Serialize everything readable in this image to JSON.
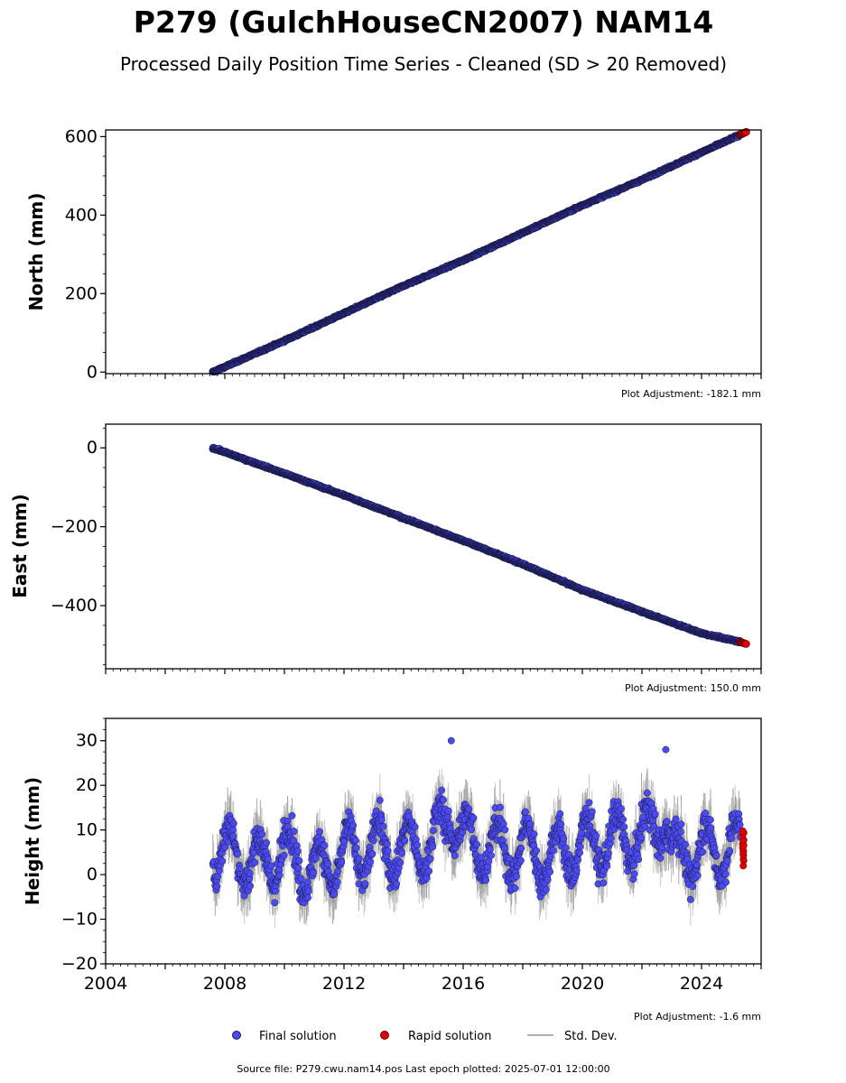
{
  "header": {
    "title": "P279 (GulchHouseCN2007) NAM14",
    "subtitle": "Processed Daily Position Time Series - Cleaned (SD > 20 Removed)"
  },
  "colors": {
    "final": "#4a4af0",
    "final_edge": "#1a1a4a",
    "rapid": "#e00000",
    "rapid_edge": "#6a0000",
    "stddev": "#b0b0b0"
  },
  "legend": {
    "final": "Final solution",
    "rapid": "Rapid solution",
    "stddev": "Std. Dev."
  },
  "footer": "Source file: P279.cwu.nam14.pos  Last epoch plotted: 2025-07-01 12:00:00",
  "chart_data": [
    {
      "type": "scatter",
      "ylabel": "North (mm)",
      "adjustment": "Plot Adjustment: -182.1 mm",
      "xlim": [
        2004,
        2026
      ],
      "ylim": [
        -4,
        617
      ],
      "yticks": [
        0,
        200,
        400,
        600
      ],
      "ytick_labels": [
        "0",
        "200",
        "400",
        "600"
      ],
      "xtick_labels_shown": false,
      "series": [
        {
          "name": "Final solution",
          "x": [
            2007.6,
            2010,
            2012,
            2014,
            2016,
            2018,
            2020,
            2022,
            2024,
            2025.3
          ],
          "y": [
            0,
            80,
            150,
            220,
            285,
            355,
            425,
            490,
            560,
            605
          ]
        },
        {
          "name": "Rapid solution",
          "x": [
            2025.3,
            2025.5
          ],
          "y": [
            605,
            612
          ]
        }
      ]
    },
    {
      "type": "scatter",
      "ylabel": "East (mm)",
      "adjustment": "Plot Adjustment: 150.0 mm",
      "xlim": [
        2004,
        2026
      ],
      "ylim": [
        -560,
        60
      ],
      "yticks": [
        0,
        -200,
        -400
      ],
      "ytick_labels": [
        "0",
        "−200",
        "−400"
      ],
      "xtick_labels_shown": false,
      "series": [
        {
          "name": "Final solution",
          "x": [
            2007.6,
            2010,
            2012,
            2014,
            2016,
            2018,
            2020,
            2022,
            2024,
            2025.3
          ],
          "y": [
            0,
            -65,
            -120,
            -178,
            -235,
            -295,
            -360,
            -415,
            -470,
            -492
          ]
        },
        {
          "name": "Rapid solution",
          "x": [
            2025.3,
            2025.5
          ],
          "y": [
            -492,
            -497
          ]
        }
      ]
    },
    {
      "type": "scatter",
      "ylabel": "Height (mm)",
      "adjustment": "Plot Adjustment: -1.6 mm",
      "xlim": [
        2004,
        2026
      ],
      "ylim": [
        -20,
        35
      ],
      "yticks": [
        30,
        20,
        10,
        0,
        -10,
        -20
      ],
      "ytick_labels": [
        "30",
        "20",
        "10",
        "0",
        "−10",
        "−20"
      ],
      "xticks": [
        2004,
        2008,
        2012,
        2016,
        2020,
        2024
      ],
      "xtick_labels": [
        "2004",
        "2008",
        "2012",
        "2016",
        "2020",
        "2024"
      ],
      "xtick_labels_shown": true,
      "series": [
        {
          "name": "Final solution",
          "x": [
            2007.6,
            2008.5,
            2009.2,
            2010,
            2011,
            2012,
            2013,
            2014,
            2015,
            2015.6,
            2016,
            2017,
            2018,
            2019,
            2020,
            2021,
            2022,
            2022.8,
            2023,
            2024,
            2025.3
          ],
          "y": [
            5,
            2,
            -5,
            3,
            -10,
            2,
            6,
            5,
            8,
            30,
            12,
            5,
            4,
            0,
            8,
            10,
            12,
            28,
            0,
            4,
            6
          ]
        },
        {
          "name": "Rapid solution",
          "x": [
            2025.4,
            2025.4,
            2025.4,
            2025.4
          ],
          "y": [
            10,
            7,
            4,
            2
          ]
        }
      ]
    }
  ]
}
